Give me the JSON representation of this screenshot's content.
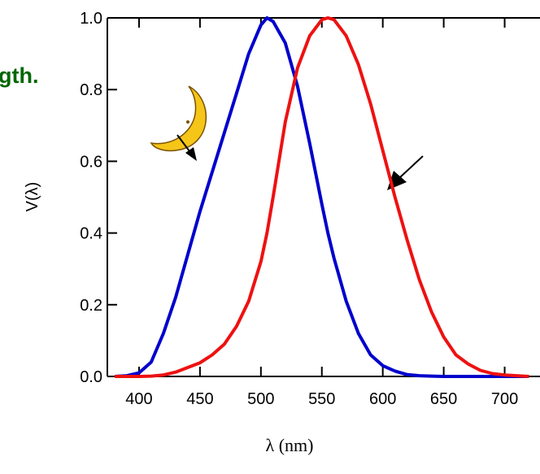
{
  "chart_data": {
    "type": "line",
    "annotation": "gth.",
    "xlabel": "λ (nm)",
    "ylabel": "V(λ)",
    "x": [
      380,
      390,
      400,
      410,
      420,
      430,
      440,
      450,
      460,
      470,
      480,
      490,
      500,
      505,
      510,
      520,
      530,
      540,
      550,
      555,
      560,
      570,
      580,
      590,
      600,
      610,
      620,
      630,
      640,
      650,
      660,
      670,
      680,
      690,
      700,
      710,
      720
    ],
    "series": [
      {
        "color": "#0000cc",
        "values": [
          0,
          0.002,
          0.01,
          0.04,
          0.12,
          0.22,
          0.34,
          0.46,
          0.57,
          0.68,
          0.79,
          0.9,
          0.98,
          1.0,
          0.99,
          0.93,
          0.81,
          0.65,
          0.48,
          0.4,
          0.33,
          0.21,
          0.12,
          0.06,
          0.03,
          0.015,
          0.005,
          0.002,
          0.001,
          0,
          0,
          0,
          0,
          0,
          0,
          0,
          0
        ]
      },
      {
        "color": "#ee1111",
        "values": [
          0,
          0,
          0,
          0.001,
          0.004,
          0.012,
          0.025,
          0.038,
          0.06,
          0.09,
          0.14,
          0.21,
          0.32,
          0.4,
          0.5,
          0.71,
          0.86,
          0.95,
          0.995,
          1.0,
          0.995,
          0.95,
          0.87,
          0.76,
          0.63,
          0.5,
          0.38,
          0.27,
          0.18,
          0.11,
          0.06,
          0.035,
          0.017,
          0.008,
          0.004,
          0.002,
          0
        ]
      }
    ],
    "xlim": [
      374,
      729
    ],
    "ylim": [
      0,
      1
    ],
    "xticks": [
      400,
      450,
      500,
      550,
      600,
      650,
      700
    ],
    "yticks": [
      {
        "value": 0,
        "label": "0.0"
      },
      0.2,
      0.4,
      0.6,
      0.8,
      {
        "value": 1,
        "label": "1.0"
      }
    ]
  }
}
